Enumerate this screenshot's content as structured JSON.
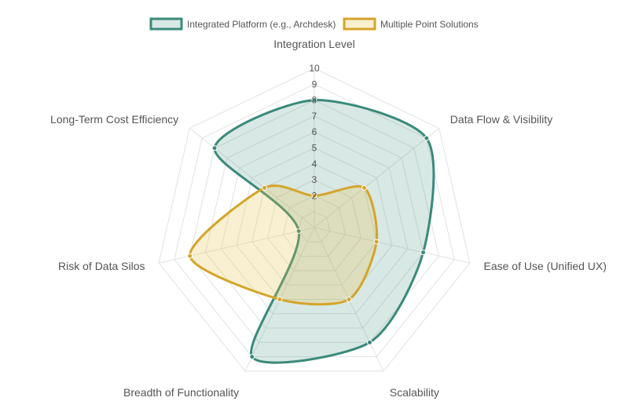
{
  "chart_data": {
    "type": "radar",
    "axes": [
      "Integration Level",
      "Data Flow & Visibility",
      "Ease of Use (Unified UX)",
      "Scalability",
      "Breadth of Functionality",
      "Risk of Data Silos",
      "Long-Term Cost Efficiency"
    ],
    "r_range": [
      0,
      10
    ],
    "ticks": [
      "2",
      "3",
      "4",
      "5",
      "6",
      "7",
      "8",
      "9",
      "10"
    ],
    "grid": true,
    "legend_position": "top",
    "series": [
      {
        "name": "Integrated Platform (e.g., Archdesk)",
        "values": [
          8,
          9,
          7,
          8,
          9,
          1,
          8
        ],
        "color": "#3a8a7a",
        "fill": "rgba(58,138,122,0.20)"
      },
      {
        "name": "Multiple Point Solutions",
        "values": [
          2,
          4,
          4,
          5,
          5,
          8,
          4
        ],
        "color": "#d4a52a",
        "fill": "rgba(230,190,70,0.25)"
      }
    ]
  }
}
